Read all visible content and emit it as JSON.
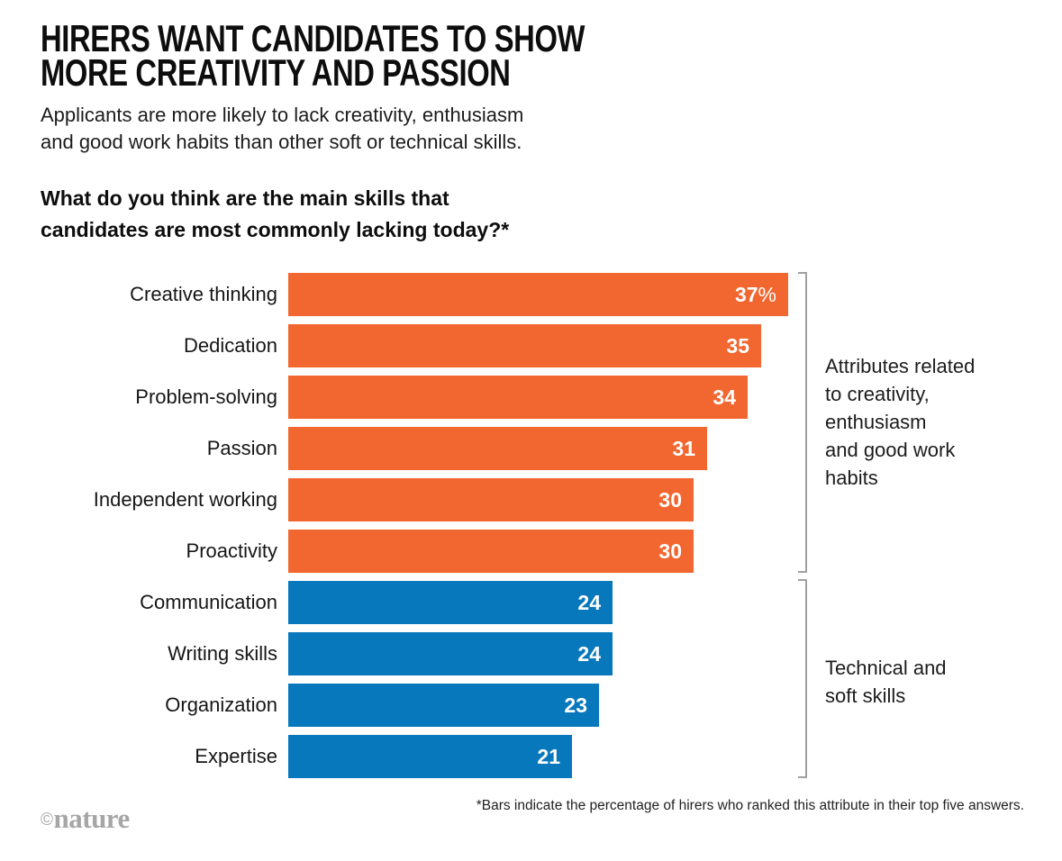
{
  "header": {
    "title": "HIRERS WANT CANDIDATES TO SHOW\nMORE CREATIVITY AND PASSION",
    "subtitle": "Applicants are more likely to lack creativity, enthusiasm\nand good work habits than other soft or technical skills.",
    "question": "What do you think are the main skills that\ncandidates are most commonly lacking today?*"
  },
  "chart_data": {
    "type": "bar",
    "orientation": "horizontal",
    "title": "What do you think are the main skills that candidates are most commonly lacking today?*",
    "categories": [
      "Creative thinking",
      "Dedication",
      "Problem-solving",
      "Passion",
      "Independent working",
      "Proactivity",
      "Communication",
      "Writing skills",
      "Organization",
      "Expertise"
    ],
    "values": [
      37,
      35,
      34,
      31,
      30,
      30,
      24,
      24,
      23,
      21
    ],
    "value_labels": [
      "37%",
      "35",
      "34",
      "31",
      "30",
      "30",
      "24",
      "24",
      "23",
      "21"
    ],
    "unit": "percent of hirers",
    "xlim": [
      0,
      37
    ],
    "grid": false,
    "legend": false,
    "groups": [
      "creativity",
      "creativity",
      "creativity",
      "creativity",
      "creativity",
      "creativity",
      "technical",
      "technical",
      "technical",
      "technical"
    ],
    "group_labels": {
      "creativity": "Attributes related\nto creativity,\nenthusiasm\nand good work\nhabits",
      "technical": "Technical and\nsoft skills"
    },
    "colors": {
      "creativity": "#F2662F",
      "technical": "#0878BC"
    }
  },
  "footer": {
    "note": "*Bars indicate the percentage of hirers who ranked this attribute in their top five answers.",
    "logo_copyright": "©",
    "logo_wordmark": "nature"
  }
}
